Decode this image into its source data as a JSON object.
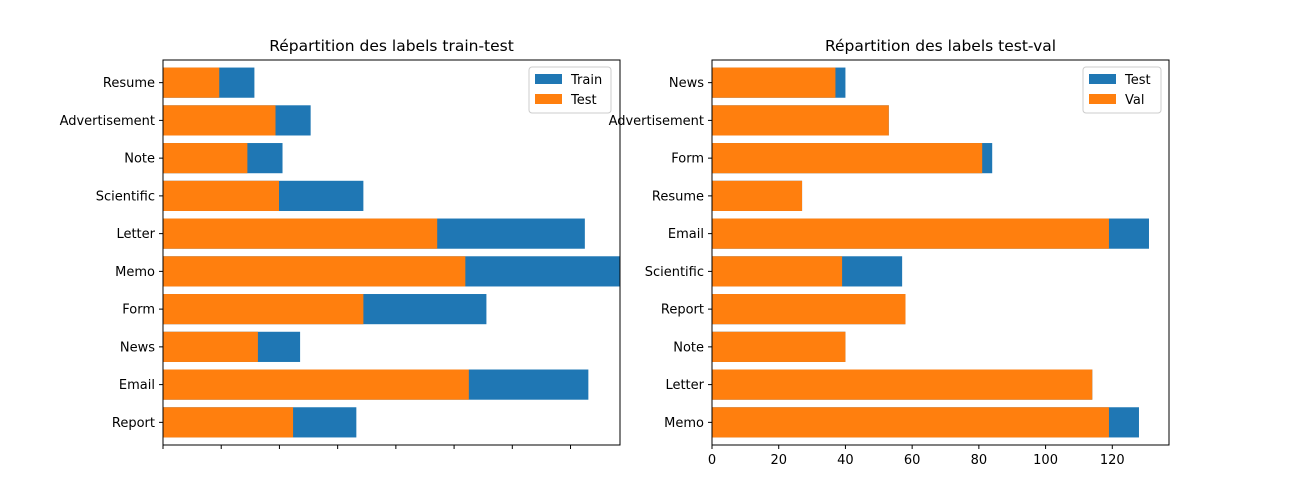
{
  "chart_data": [
    {
      "type": "bar",
      "orientation": "horizontal",
      "title": "Répartition des labels train-test",
      "xlabel": "",
      "ylabel": "",
      "x_tick_labels_visible": false,
      "xlim": [
        0,
        130
      ],
      "categories": [
        "Report",
        "Email",
        "News",
        "Form",
        "Memo",
        "Letter",
        "Scientific",
        "Note",
        "Advertisement",
        "Resume"
      ],
      "series": [
        {
          "name": "Train",
          "color": "#1f77b4",
          "values": [
            55,
            121,
            39,
            92,
            130,
            120,
            57,
            34,
            42,
            26
          ]
        },
        {
          "name": "Test",
          "color": "#ff7f0e",
          "values": [
            37,
            87,
            27,
            57,
            86,
            78,
            33,
            24,
            32,
            16
          ]
        }
      ],
      "legend": {
        "position": "top-right"
      },
      "grid": false
    },
    {
      "type": "bar",
      "orientation": "horizontal",
      "title": "Répartition des labels test-val",
      "xlabel": "",
      "ylabel": "",
      "xlim": [
        0,
        137
      ],
      "xticks": [
        0,
        20,
        40,
        60,
        80,
        100,
        120
      ],
      "categories": [
        "Memo",
        "Letter",
        "Note",
        "Report",
        "Scientific",
        "Email",
        "Resume",
        "Form",
        "Advertisement",
        "News"
      ],
      "series": [
        {
          "name": "Test",
          "color": "#1f77b4",
          "values": [
            128,
            114,
            40,
            58,
            57,
            131,
            27,
            84,
            53,
            40
          ]
        },
        {
          "name": "Val",
          "color": "#ff7f0e",
          "values": [
            119,
            114,
            40,
            58,
            39,
            119,
            27,
            81,
            53,
            37
          ]
        }
      ],
      "legend": {
        "position": "top-right"
      },
      "grid": false
    }
  ]
}
